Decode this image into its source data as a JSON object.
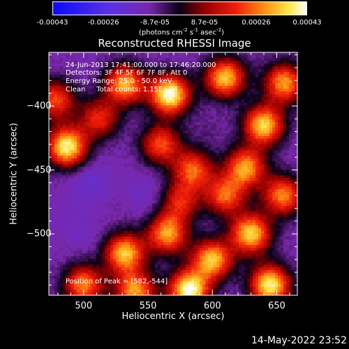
{
  "chart_data": {
    "type": "heatmap",
    "title": "Reconstructed RHESSI Image",
    "xlabel": "Heliocentric X (arcsec)",
    "ylabel": "Heliocentric Y (arcsec)",
    "xlim": [
      473,
      666
    ],
    "ylim": [
      -548,
      -358
    ],
    "x_ticks": [
      500,
      550,
      600,
      650
    ],
    "y_ticks": [
      -400,
      -450,
      -500
    ],
    "colorbar": {
      "ticks": [
        "-0.00043",
        "-0.00026",
        "-8.7e-05",
        "8.7e-05",
        "0.00026",
        "0.00043"
      ],
      "range": [
        -0.00043,
        0.00043
      ],
      "units_text": "(photons cm",
      "units_exp1": "-2",
      "units_mid": " s",
      "units_exp2": "-1",
      "units_mid2": " asec",
      "units_exp3": "-2",
      "units_end": ")"
    },
    "annotations": {
      "time_range": "24-Jun-2013 17:41:00.000 to 17:46:20.000",
      "detectors": "Detectors: 3F 4F 5F 6F 7F 8F, Att 0",
      "energy": "Energy Range: 25.0 - 50.0 keV",
      "clean": "Clean     Total counts: 1.15E+04",
      "peak": "Position of Peak = [582,-544]"
    },
    "peak_position": [
      582,
      -544
    ],
    "blobs": [
      {
        "x": 567,
        "y": -391,
        "v": 0.00043
      },
      {
        "x": 582,
        "y": -544,
        "v": 0.00043
      },
      {
        "x": 487,
        "y": -432,
        "v": 0.0004
      },
      {
        "x": 532,
        "y": -383,
        "v": 0.00032
      },
      {
        "x": 610,
        "y": -378,
        "v": 0.00034
      },
      {
        "x": 656,
        "y": -382,
        "v": 0.0003
      },
      {
        "x": 640,
        "y": -415,
        "v": 0.00036
      },
      {
        "x": 626,
        "y": -448,
        "v": 0.0003
      },
      {
        "x": 655,
        "y": -470,
        "v": 0.00028
      },
      {
        "x": 610,
        "y": -470,
        "v": 0.00024
      },
      {
        "x": 630,
        "y": -500,
        "v": 0.00036
      },
      {
        "x": 645,
        "y": -540,
        "v": 0.0004
      },
      {
        "x": 600,
        "y": -520,
        "v": 0.00034
      },
      {
        "x": 565,
        "y": -500,
        "v": 0.0003
      },
      {
        "x": 532,
        "y": -515,
        "v": 0.00034
      },
      {
        "x": 540,
        "y": -545,
        "v": 0.0003
      },
      {
        "x": 500,
        "y": -540,
        "v": 0.00028
      },
      {
        "x": 585,
        "y": -450,
        "v": 0.00024
      },
      {
        "x": 560,
        "y": -430,
        "v": 0.00022
      },
      {
        "x": 512,
        "y": -410,
        "v": 0.00018
      },
      {
        "x": 478,
        "y": -395,
        "v": 0.00022
      },
      {
        "x": 575,
        "y": -475,
        "v": 0.00016
      },
      {
        "x": 522,
        "y": -478,
        "v": -0.0001
      },
      {
        "x": 505,
        "y": -460,
        "v": -0.00018
      },
      {
        "x": 550,
        "y": -470,
        "v": -0.00016
      },
      {
        "x": 500,
        "y": -500,
        "v": -0.00014
      },
      {
        "x": 595,
        "y": -420,
        "v": -8e-05
      },
      {
        "x": 490,
        "y": -485,
        "v": -0.00012
      }
    ]
  },
  "footer": {
    "timestamp": "14-May-2022 23:52"
  }
}
